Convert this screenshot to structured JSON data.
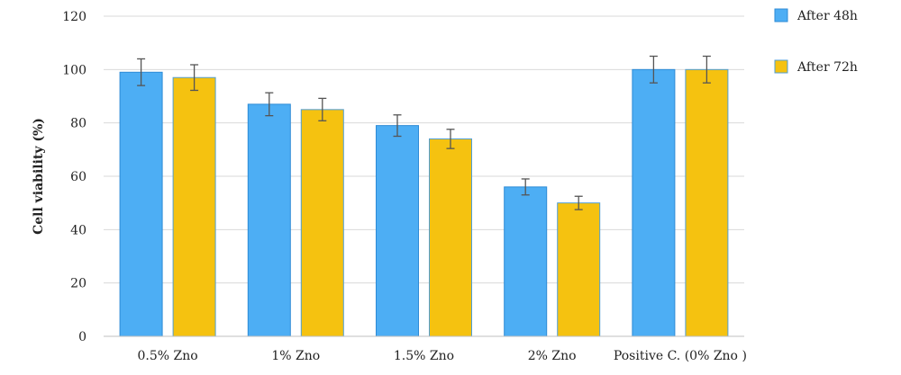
{
  "chart_data": {
    "type": "bar",
    "title": "",
    "xlabel": "",
    "ylabel": "Cell viability (%)",
    "ylim": [
      0,
      120
    ],
    "yticks": [
      0,
      20,
      40,
      60,
      80,
      100,
      120
    ],
    "grid": true,
    "legend_position": "top-right",
    "categories": [
      "0.5% Zno",
      "1% Zno",
      "1.5% Zno",
      "2% Zno",
      "Positive C. (0% Zno )"
    ],
    "series": [
      {
        "name": "After 48h",
        "color": "#4DAEF4",
        "edge_color": "#2E8BD6",
        "values": [
          99,
          87,
          79,
          56,
          100
        ],
        "errors": [
          5,
          4.3,
          4,
          3,
          5
        ]
      },
      {
        "name": "After 72h",
        "color": "#F5C210",
        "edge_color": "#4F9ED6",
        "values": [
          97,
          85,
          74,
          50,
          100
        ],
        "errors": [
          4.8,
          4.2,
          3.6,
          2.5,
          5
        ]
      }
    ]
  }
}
